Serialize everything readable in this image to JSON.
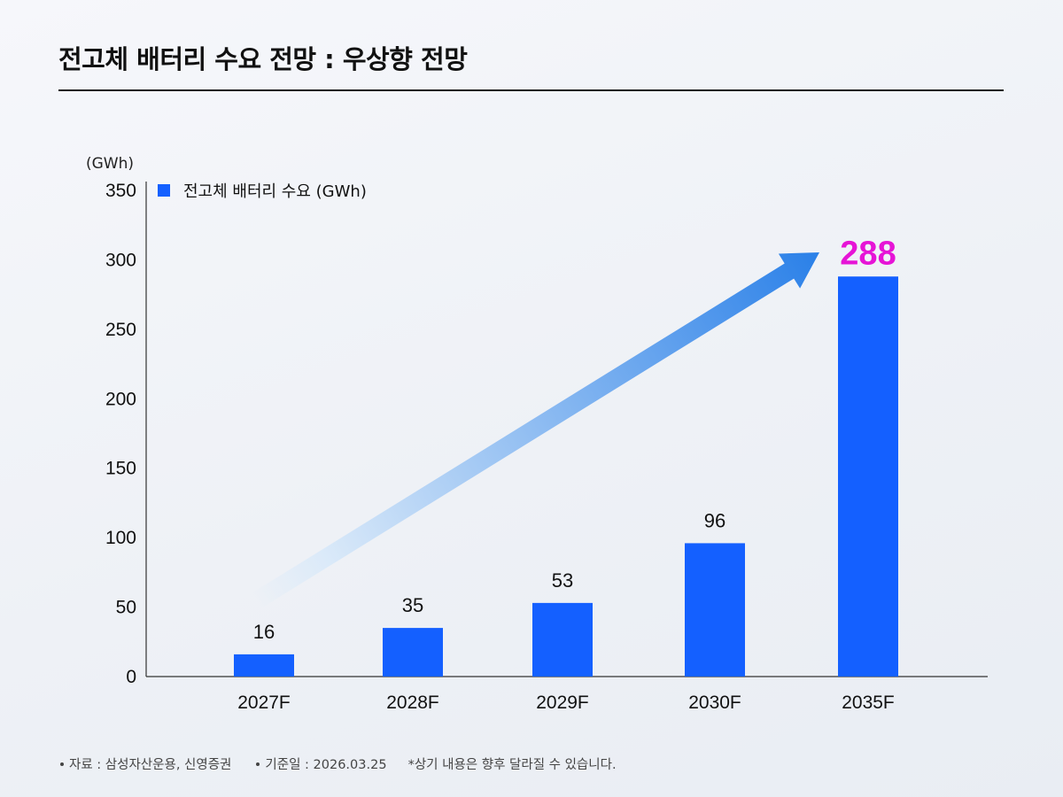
{
  "title": "전고체 배터리 수요 전망 : 우상향 전망",
  "footer": {
    "source": "자료 : 삼성자산운용, 신영증권",
    "base_date": "기준일 : 2026.03.25",
    "note": "*상기 내용은 향후 달라질 수 있습니다."
  },
  "colors": {
    "bar": "#1460ff",
    "highlight_label": "#e614d6",
    "arrow_start": "#dbeaf9",
    "arrow_end": "#2a80e8",
    "axis": "#333333"
  },
  "chart_data": {
    "type": "bar",
    "unit_label": "(GWh)",
    "categories": [
      "2027F",
      "2028F",
      "2029F",
      "2030F",
      "2035F"
    ],
    "series": [
      {
        "name": "전고체 배터리 수요 (GWh)",
        "values": [
          16,
          35,
          53,
          96,
          288
        ],
        "value_labels": [
          "16",
          "35",
          "53",
          "96",
          "288"
        ]
      }
    ],
    "yticks": [
      0,
      50,
      100,
      150,
      200,
      250,
      300,
      350
    ],
    "ylim": [
      0,
      350
    ],
    "highlight_category": "2035F",
    "legend_position": "top-left",
    "trend_arrow": true,
    "grid": false
  }
}
